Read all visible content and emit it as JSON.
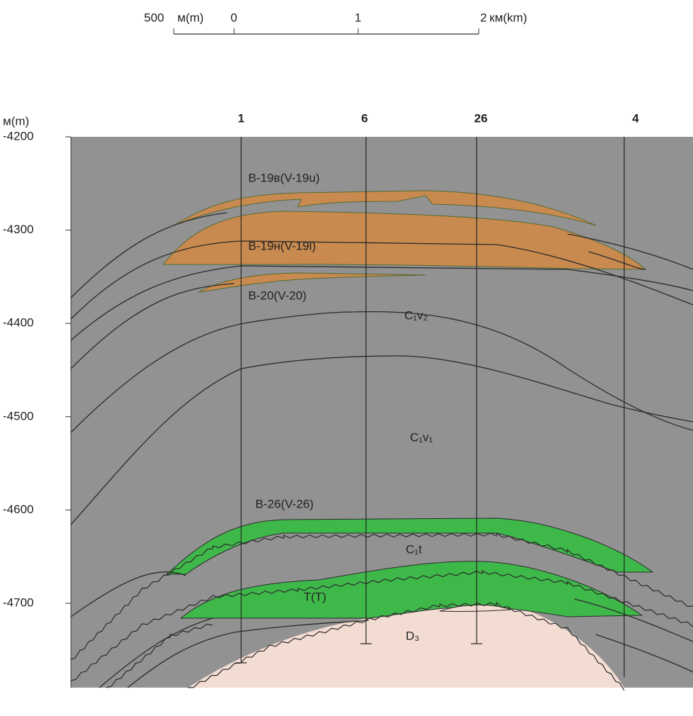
{
  "scale_bar": {
    "labels": [
      "500",
      "м(m)",
      "0",
      "1",
      "2",
      "км(km)"
    ]
  },
  "depth_axis": {
    "unit": "м(m)",
    "ticks": [
      -4200,
      -4300,
      -4400,
      -4500,
      -4600,
      -4700
    ]
  },
  "wells": [
    "1",
    "6",
    "26",
    "4"
  ],
  "layers": [
    "B-19в(V-19u)",
    "B-19н(V-19l)",
    "B-20(V-20)",
    "C₁v₂",
    "C₁v₁",
    "B-26(V-26)",
    "C₁t",
    "T(T)",
    "D₃"
  ]
}
